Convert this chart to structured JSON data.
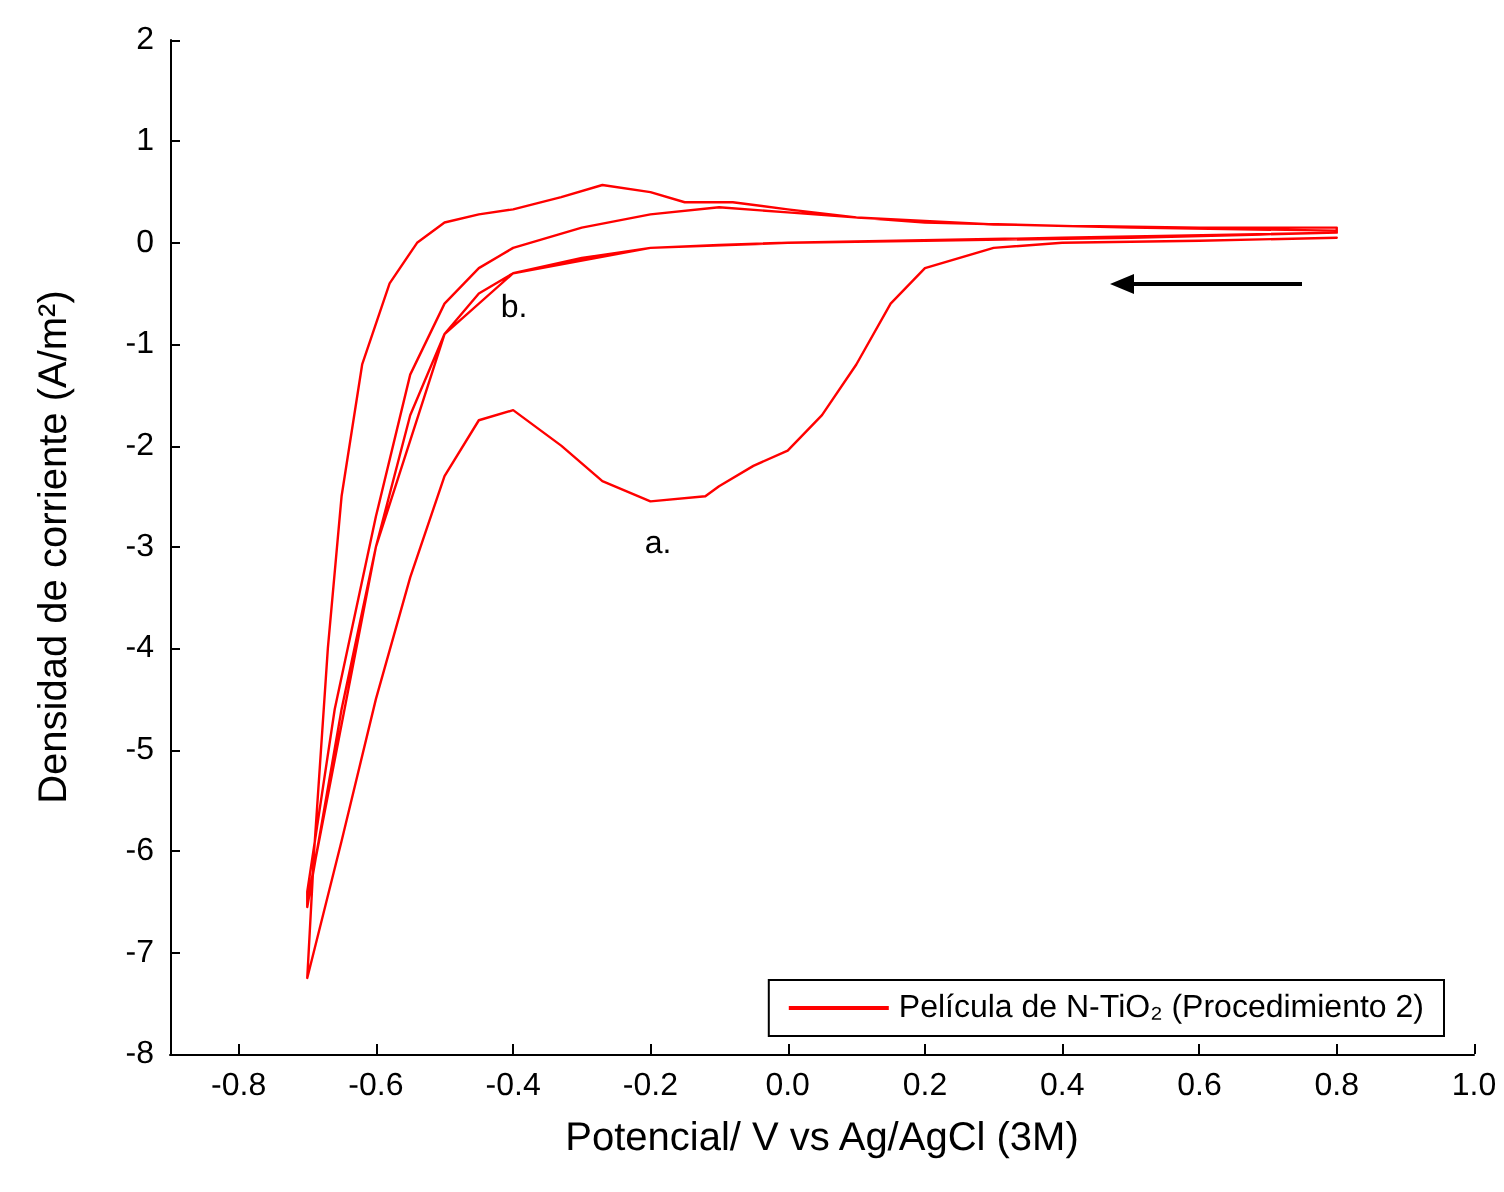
{
  "chart_data": {
    "type": "line",
    "xlabel": "Potencial/ V vs Ag/AgCl (3M)",
    "ylabel": "Densidad de corriente (A/m²)",
    "xlim": [
      -0.9,
      1.0
    ],
    "ylim": [
      -8,
      2
    ],
    "xticks": [
      {
        "value": -0.8,
        "label": "-0.8"
      },
      {
        "value": -0.6,
        "label": "-0.6"
      },
      {
        "value": -0.4,
        "label": "-0.4"
      },
      {
        "value": -0.2,
        "label": "-0.2"
      },
      {
        "value": 0,
        "label": "0.0"
      },
      {
        "value": 0.2,
        "label": "0.2"
      },
      {
        "value": 0.4,
        "label": "0.4"
      },
      {
        "value": 0.6,
        "label": "0.6"
      },
      {
        "value": 0.8,
        "label": "0.8"
      },
      {
        "value": 1.0,
        "label": "1.0"
      }
    ],
    "yticks": [
      -8,
      -7,
      -6,
      -5,
      -4,
      -3,
      -2,
      -1,
      0,
      1,
      2
    ],
    "grid": false,
    "legend": "bottom right",
    "marker": "none",
    "line_style": "solid",
    "series": [
      {
        "name": "Película de N-TiO₂ (Procedimiento 2)",
        "color": "#ff0000",
        "x": [
          0.8,
          0.6,
          0.4,
          0.3,
          0.2,
          0.15,
          0.1,
          0.05,
          0,
          -0.05,
          -0.1,
          -0.12,
          -0.2,
          -0.27,
          -0.33,
          -0.4,
          -0.45,
          -0.5,
          -0.55,
          -0.6,
          -0.65,
          -0.7,
          -0.69,
          -0.67,
          -0.65,
          -0.62,
          -0.58,
          -0.54,
          -0.5,
          -0.45,
          -0.4,
          -0.33,
          -0.27,
          -0.2,
          -0.15,
          -0.08,
          0,
          0.1,
          0.3,
          0.6,
          0.8,
          0.8,
          0.5,
          0.2,
          0,
          -0.1,
          -0.2,
          -0.3,
          -0.4,
          -0.45,
          -0.5,
          -0.55,
          -0.6,
          -0.65,
          -0.7,
          -0.7,
          -0.66,
          -0.6,
          -0.55,
          -0.5,
          -0.45,
          -0.4,
          -0.3,
          -0.2,
          -0.1,
          0,
          0.2,
          0.5,
          0.8,
          0.8,
          0.4,
          0,
          -0.2,
          -0.4,
          -0.5,
          -0.6,
          -0.7
        ],
        "values": [
          0.05,
          0.02,
          0,
          -0.05,
          -0.25,
          -0.6,
          -1.2,
          -1.7,
          -2.05,
          -2.2,
          -2.4,
          -2.5,
          -2.55,
          -2.35,
          -2.0,
          -1.65,
          -1.75,
          -2.3,
          -3.3,
          -4.5,
          -5.9,
          -7.25,
          -6,
          -4,
          -2.5,
          -1.2,
          -0.4,
          0,
          0.2,
          0.28,
          0.33,
          0.45,
          0.57,
          0.5,
          0.4,
          0.4,
          0.33,
          0.25,
          0.18,
          0.15,
          0.15,
          0.1,
          0.05,
          0.02,
          0,
          -0.02,
          -0.05,
          -0.15,
          -0.3,
          -0.5,
          -0.9,
          -1.7,
          -3,
          -4.6,
          -6.55,
          -6.4,
          -4.6,
          -2.7,
          -1.3,
          -0.6,
          -0.25,
          -0.05,
          0.15,
          0.28,
          0.35,
          0.3,
          0.2,
          0.15,
          0.12,
          0.1,
          0.05,
          0,
          -0.05,
          -0.3,
          -0.9,
          -3,
          -6.5
        ]
      }
    ],
    "annotations": [
      "a.",
      "b."
    ]
  }
}
